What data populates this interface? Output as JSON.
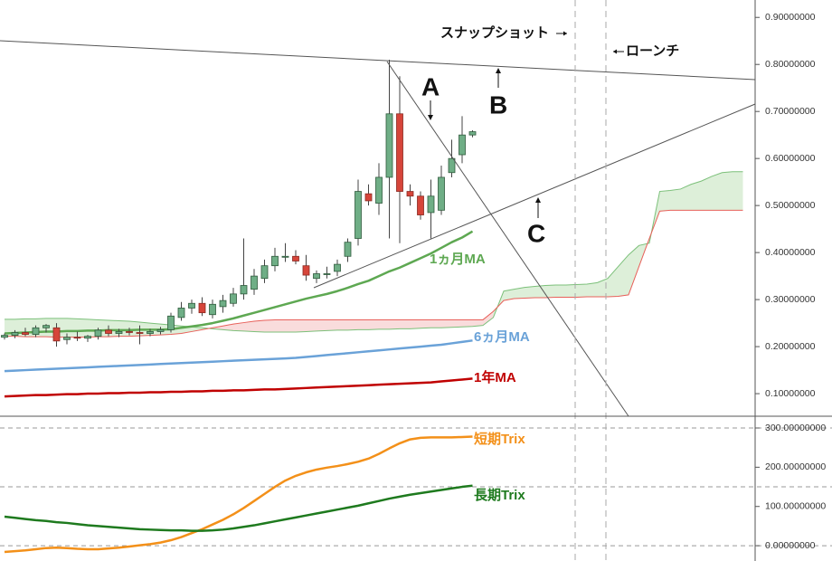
{
  "chart_data": [
    {
      "type": "candlestick",
      "ylim": [
        0.052,
        0.937
      ],
      "yticks": [
        {
          "value": 0.1,
          "label": "0.10000000"
        },
        {
          "value": 0.2,
          "label": "0.20000000"
        },
        {
          "value": 0.3,
          "label": "0.30000000"
        },
        {
          "value": 0.4,
          "label": "0.40000000"
        },
        {
          "value": 0.5,
          "label": "0.50000000"
        },
        {
          "value": 0.6,
          "label": "0.60000000"
        },
        {
          "value": 0.7,
          "label": "0.70000000"
        },
        {
          "value": 0.8,
          "label": "0.80000000"
        },
        {
          "value": 0.9,
          "label": "0.90000000"
        }
      ],
      "ohlc": {
        "up_color": "#6fae86",
        "down_color": "#d6453a",
        "open": [
          0.22,
          0.224,
          0.23,
          0.226,
          0.24,
          0.24,
          0.215,
          0.22,
          0.218,
          0.222,
          0.235,
          0.228,
          0.232,
          0.23,
          0.228,
          0.232,
          0.236,
          0.262,
          0.282,
          0.292,
          0.268,
          0.285,
          0.292,
          0.312,
          0.322,
          0.345,
          0.372,
          0.39,
          0.392,
          0.372,
          0.345,
          0.355,
          0.36,
          0.392,
          0.43,
          0.525,
          0.505,
          0.56,
          0.695,
          0.53,
          0.52,
          0.485,
          0.49,
          0.57,
          0.608,
          0.65
        ],
        "high": [
          0.228,
          0.235,
          0.24,
          0.245,
          0.248,
          0.25,
          0.228,
          0.232,
          0.225,
          0.24,
          0.245,
          0.238,
          0.24,
          0.245,
          0.238,
          0.242,
          0.272,
          0.295,
          0.3,
          0.305,
          0.3,
          0.31,
          0.325,
          0.43,
          0.365,
          0.385,
          0.41,
          0.42,
          0.405,
          0.395,
          0.362,
          0.37,
          0.385,
          0.43,
          0.555,
          0.545,
          0.59,
          0.81,
          0.775,
          0.545,
          0.53,
          0.555,
          0.585,
          0.64,
          0.69,
          0.66
        ],
        "low": [
          0.215,
          0.218,
          0.222,
          0.22,
          0.23,
          0.2,
          0.205,
          0.212,
          0.21,
          0.215,
          0.222,
          0.22,
          0.224,
          0.205,
          0.222,
          0.226,
          0.23,
          0.255,
          0.27,
          0.265,
          0.26,
          0.272,
          0.285,
          0.3,
          0.31,
          0.335,
          0.36,
          0.38,
          0.375,
          0.34,
          0.335,
          0.345,
          0.35,
          0.38,
          0.415,
          0.5,
          0.48,
          0.43,
          0.42,
          0.5,
          0.47,
          0.43,
          0.48,
          0.56,
          0.59,
          0.645
        ],
        "close": [
          0.224,
          0.23,
          0.226,
          0.24,
          0.245,
          0.212,
          0.22,
          0.218,
          0.222,
          0.235,
          0.228,
          0.232,
          0.23,
          0.228,
          0.232,
          0.236,
          0.265,
          0.282,
          0.292,
          0.272,
          0.29,
          0.298,
          0.312,
          0.33,
          0.35,
          0.372,
          0.392,
          0.392,
          0.382,
          0.352,
          0.355,
          0.355,
          0.375,
          0.422,
          0.53,
          0.51,
          0.56,
          0.695,
          0.53,
          0.52,
          0.48,
          0.52,
          0.56,
          0.6,
          0.65,
          0.657
        ]
      },
      "cloud": {
        "fill_up": "#d4ebd0",
        "fill_down": "#f7d3d3",
        "span_a": {
          "color": "#7cc07a",
          "values": [
            0.258,
            0.258,
            0.259,
            0.259,
            0.26,
            0.26,
            0.26,
            0.259,
            0.258,
            0.257,
            0.256,
            0.255,
            0.254,
            0.252,
            0.25,
            0.248,
            0.246,
            0.244,
            0.242,
            0.24,
            0.238,
            0.236,
            0.234,
            0.233,
            0.232,
            0.231,
            0.231,
            0.231,
            0.231,
            0.232,
            0.233,
            0.234,
            0.235,
            0.235,
            0.236,
            0.236,
            0.237,
            0.237,
            0.238,
            0.238,
            0.239,
            0.24,
            0.24,
            0.241,
            0.242,
            0.243,
            0.245,
            0.262,
            0.318,
            0.322,
            0.326,
            0.328,
            0.33,
            0.331,
            0.331,
            0.332,
            0.333,
            0.336,
            0.345,
            0.37,
            0.395,
            0.415,
            0.42,
            0.53,
            0.532,
            0.535,
            0.545,
            0.552,
            0.562,
            0.57,
            0.572,
            0.572
          ]
        },
        "span_b": {
          "color": "#e8605a",
          "values": [
            0.222,
            0.222,
            0.221,
            0.221,
            0.221,
            0.22,
            0.22,
            0.22,
            0.22,
            0.221,
            0.221,
            0.222,
            0.222,
            0.223,
            0.224,
            0.225,
            0.226,
            0.228,
            0.232,
            0.236,
            0.24,
            0.244,
            0.248,
            0.251,
            0.254,
            0.256,
            0.257,
            0.257,
            0.257,
            0.257,
            0.257,
            0.257,
            0.257,
            0.257,
            0.257,
            0.257,
            0.257,
            0.257,
            0.257,
            0.257,
            0.257,
            0.257,
            0.257,
            0.257,
            0.257,
            0.257,
            0.257,
            0.275,
            0.298,
            0.302,
            0.303,
            0.304,
            0.304,
            0.305,
            0.305,
            0.305,
            0.306,
            0.306,
            0.306,
            0.307,
            0.31,
            0.37,
            0.43,
            0.488,
            0.49,
            0.49,
            0.49,
            0.49,
            0.49,
            0.49,
            0.49,
            0.49
          ]
        }
      },
      "series": [
        {
          "name": "1ヵ月MA",
          "color": "#5ea852",
          "values": [
            0.228,
            0.229,
            0.23,
            0.231,
            0.232,
            0.232,
            0.233,
            0.233,
            0.234,
            0.234,
            0.235,
            0.235,
            0.235,
            0.236,
            0.236,
            0.236,
            0.237,
            0.24,
            0.243,
            0.246,
            0.25,
            0.255,
            0.26,
            0.266,
            0.272,
            0.278,
            0.284,
            0.29,
            0.296,
            0.302,
            0.307,
            0.312,
            0.318,
            0.325,
            0.333,
            0.34,
            0.35,
            0.36,
            0.368,
            0.378,
            0.388,
            0.398,
            0.41,
            0.422,
            0.432,
            0.445,
            null,
            null,
            null,
            null,
            null,
            null,
            null,
            null,
            null,
            null,
            null,
            null,
            null,
            null,
            null,
            null,
            null,
            null,
            null,
            null,
            null,
            null,
            null,
            null,
            null,
            null
          ]
        },
        {
          "name": "6ヵ月MA",
          "color": "#6aa2d8",
          "values": [
            0.148,
            0.149,
            0.15,
            0.151,
            0.152,
            0.153,
            0.154,
            0.155,
            0.156,
            0.157,
            0.158,
            0.159,
            0.16,
            0.161,
            0.162,
            0.163,
            0.164,
            0.165,
            0.166,
            0.167,
            0.168,
            0.169,
            0.17,
            0.171,
            0.172,
            0.173,
            0.174,
            0.175,
            0.176,
            0.178,
            0.18,
            0.182,
            0.184,
            0.186,
            0.188,
            0.19,
            0.192,
            0.194,
            0.196,
            0.198,
            0.2,
            0.202,
            0.204,
            0.207,
            0.21,
            0.213,
            null,
            null,
            null,
            null,
            null,
            null,
            null,
            null,
            null,
            null,
            null,
            null,
            null,
            null,
            null,
            null,
            null,
            null,
            null,
            null,
            null,
            null,
            null,
            null,
            null,
            null
          ]
        },
        {
          "name": "1年MA",
          "color": "#c00000",
          "values": [
            0.094,
            0.095,
            0.096,
            0.097,
            0.097,
            0.098,
            0.099,
            0.099,
            0.1,
            0.1,
            0.101,
            0.101,
            0.102,
            0.102,
            0.103,
            0.103,
            0.104,
            0.104,
            0.105,
            0.105,
            0.106,
            0.106,
            0.107,
            0.107,
            0.108,
            0.109,
            0.109,
            0.11,
            0.111,
            0.112,
            0.113,
            0.114,
            0.115,
            0.116,
            0.117,
            0.118,
            0.119,
            0.12,
            0.121,
            0.122,
            0.123,
            0.124,
            0.126,
            0.128,
            0.13,
            0.132,
            null,
            null,
            null,
            null,
            null,
            null,
            null,
            null,
            null,
            null,
            null,
            null,
            null,
            null,
            null,
            null,
            null,
            null,
            null,
            null,
            null,
            null,
            null,
            null,
            null,
            null
          ]
        }
      ],
      "annotations": {
        "snapshot": "スナップショット",
        "launch": "ローンチ",
        "a": "A",
        "b": "B",
        "c": "C"
      }
    },
    {
      "type": "line",
      "ylim": [
        -39,
        330
      ],
      "yticks": [
        {
          "value": 0,
          "label": "0.00000000"
        },
        {
          "value": 100,
          "label": "100.00000000"
        },
        {
          "value": 200,
          "label": "200.00000000"
        },
        {
          "value": 300,
          "label": "300.00000000"
        }
      ],
      "hlines": [
        0,
        150,
        300
      ],
      "series": [
        {
          "name": "短期Trix",
          "color": "#f39019",
          "values": [
            -16,
            -14,
            -12,
            -9,
            -6,
            -5,
            -6,
            -8,
            -9,
            -9,
            -7,
            -5,
            -2,
            1,
            4,
            8,
            14,
            22,
            32,
            42,
            54,
            66,
            80,
            96,
            114,
            132,
            150,
            166,
            178,
            187,
            194,
            199,
            203,
            208,
            214,
            222,
            234,
            248,
            261,
            271,
            275,
            276,
            276,
            276,
            277,
            278
          ]
        },
        {
          "name": "長期Trix",
          "color": "#1e7a1e",
          "values": [
            74,
            71,
            68,
            65,
            63,
            60,
            58,
            55,
            52,
            50,
            48,
            46,
            44,
            42,
            41,
            40,
            39,
            39,
            38,
            38,
            39,
            41,
            44,
            48,
            52,
            57,
            62,
            67,
            72,
            77,
            82,
            87,
            92,
            97,
            102,
            108,
            114,
            120,
            125,
            130,
            134,
            138,
            142,
            146,
            150,
            153
          ]
        }
      ]
    }
  ]
}
